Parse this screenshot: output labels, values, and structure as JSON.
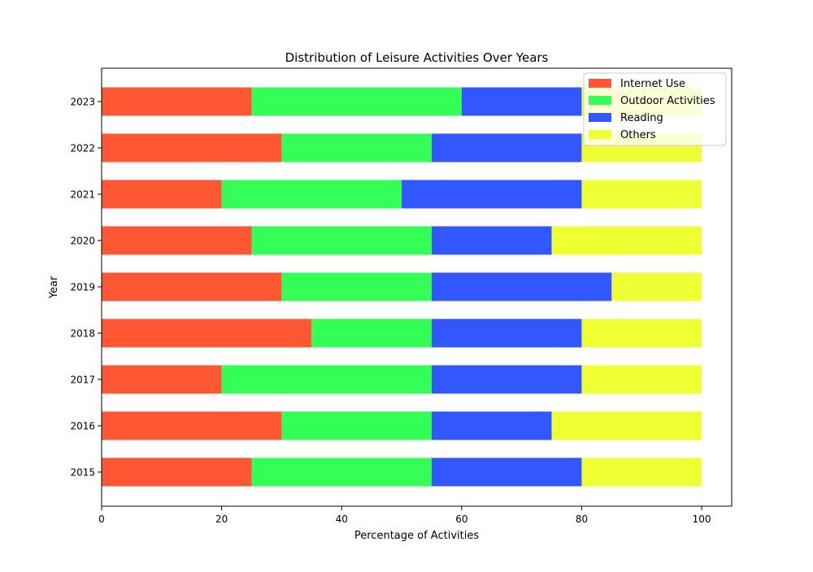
{
  "chart_data": {
    "type": "bar",
    "orientation": "horizontal",
    "stacked": true,
    "title": "Distribution of Leisure Activities Over Years",
    "xlabel": "Percentage of Activities",
    "ylabel": "Year",
    "xlim": [
      0,
      105
    ],
    "xticks": [
      "0",
      "20",
      "40",
      "60",
      "80",
      "100"
    ],
    "categories": [
      "2015",
      "2016",
      "2017",
      "2018",
      "2019",
      "2020",
      "2021",
      "2022",
      "2023"
    ],
    "grid": false,
    "legend_position": "top-right",
    "series": [
      {
        "name": "Internet Use",
        "color": "#ff5733",
        "values": [
          25,
          30,
          20,
          35,
          30,
          25,
          20,
          30,
          25
        ]
      },
      {
        "name": "Outdoor Activities",
        "color": "#33ff57",
        "values": [
          30,
          25,
          35,
          20,
          25,
          30,
          30,
          25,
          35
        ]
      },
      {
        "name": "Reading",
        "color": "#3357ff",
        "values": [
          25,
          20,
          25,
          25,
          30,
          20,
          30,
          25,
          20
        ]
      },
      {
        "name": "Others",
        "color": "#eeff33",
        "values": [
          20,
          25,
          20,
          20,
          15,
          25,
          20,
          20,
          20
        ]
      }
    ]
  }
}
